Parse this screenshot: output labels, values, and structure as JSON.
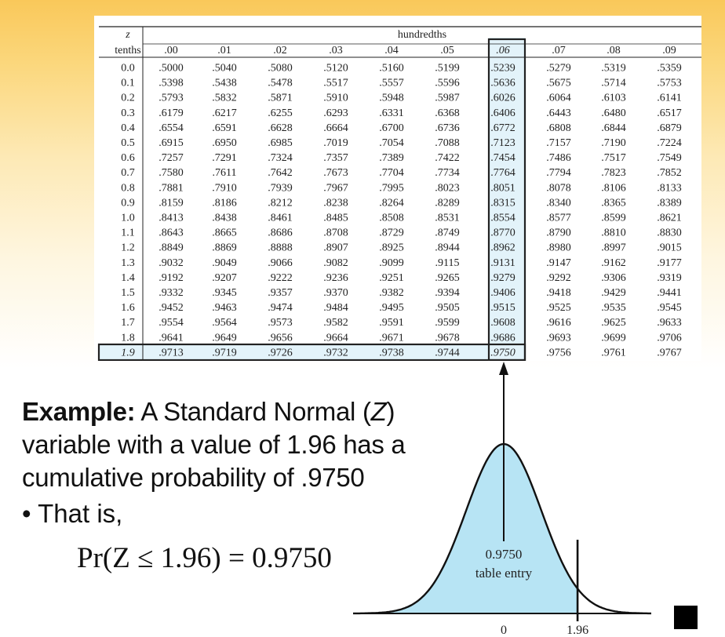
{
  "table": {
    "corner_top": "z",
    "corner_bottom": "tenths",
    "group_header": "hundredths",
    "columns": [
      ".00",
      ".01",
      ".02",
      ".03",
      ".04",
      ".05",
      ".06",
      ".07",
      ".08",
      ".09"
    ],
    "highlight_column_index": 6,
    "highlight_row_index": 19,
    "rows": [
      {
        "z": "0.0",
        "values": [
          ".5000",
          ".5040",
          ".5080",
          ".5120",
          ".5160",
          ".5199",
          ".5239",
          ".5279",
          ".5319",
          ".5359"
        ]
      },
      {
        "z": "0.1",
        "values": [
          ".5398",
          ".5438",
          ".5478",
          ".5517",
          ".5557",
          ".5596",
          ".5636",
          ".5675",
          ".5714",
          ".5753"
        ]
      },
      {
        "z": "0.2",
        "values": [
          ".5793",
          ".5832",
          ".5871",
          ".5910",
          ".5948",
          ".5987",
          ".6026",
          ".6064",
          ".6103",
          ".6141"
        ]
      },
      {
        "z": "0.3",
        "values": [
          ".6179",
          ".6217",
          ".6255",
          ".6293",
          ".6331",
          ".6368",
          ".6406",
          ".6443",
          ".6480",
          ".6517"
        ]
      },
      {
        "z": "0.4",
        "values": [
          ".6554",
          ".6591",
          ".6628",
          ".6664",
          ".6700",
          ".6736",
          ".6772",
          ".6808",
          ".6844",
          ".6879"
        ]
      },
      {
        "z": "0.5",
        "values": [
          ".6915",
          ".6950",
          ".6985",
          ".7019",
          ".7054",
          ".7088",
          ".7123",
          ".7157",
          ".7190",
          ".7224"
        ]
      },
      {
        "z": "0.6",
        "values": [
          ".7257",
          ".7291",
          ".7324",
          ".7357",
          ".7389",
          ".7422",
          ".7454",
          ".7486",
          ".7517",
          ".7549"
        ]
      },
      {
        "z": "0.7",
        "values": [
          ".7580",
          ".7611",
          ".7642",
          ".7673",
          ".7704",
          ".7734",
          ".7764",
          ".7794",
          ".7823",
          ".7852"
        ]
      },
      {
        "z": "0.8",
        "values": [
          ".7881",
          ".7910",
          ".7939",
          ".7967",
          ".7995",
          ".8023",
          ".8051",
          ".8078",
          ".8106",
          ".8133"
        ]
      },
      {
        "z": "0.9",
        "values": [
          ".8159",
          ".8186",
          ".8212",
          ".8238",
          ".8264",
          ".8289",
          ".8315",
          ".8340",
          ".8365",
          ".8389"
        ]
      },
      {
        "z": "1.0",
        "values": [
          ".8413",
          ".8438",
          ".8461",
          ".8485",
          ".8508",
          ".8531",
          ".8554",
          ".8577",
          ".8599",
          ".8621"
        ]
      },
      {
        "z": "1.1",
        "values": [
          ".8643",
          ".8665",
          ".8686",
          ".8708",
          ".8729",
          ".8749",
          ".8770",
          ".8790",
          ".8810",
          ".8830"
        ]
      },
      {
        "z": "1.2",
        "values": [
          ".8849",
          ".8869",
          ".8888",
          ".8907",
          ".8925",
          ".8944",
          ".8962",
          ".8980",
          ".8997",
          ".9015"
        ]
      },
      {
        "z": "1.3",
        "values": [
          ".9032",
          ".9049",
          ".9066",
          ".9082",
          ".9099",
          ".9115",
          ".9131",
          ".9147",
          ".9162",
          ".9177"
        ]
      },
      {
        "z": "1.4",
        "values": [
          ".9192",
          ".9207",
          ".9222",
          ".9236",
          ".9251",
          ".9265",
          ".9279",
          ".9292",
          ".9306",
          ".9319"
        ]
      },
      {
        "z": "1.5",
        "values": [
          ".9332",
          ".9345",
          ".9357",
          ".9370",
          ".9382",
          ".9394",
          ".9406",
          ".9418",
          ".9429",
          ".9441"
        ]
      },
      {
        "z": "1.6",
        "values": [
          ".9452",
          ".9463",
          ".9474",
          ".9484",
          ".9495",
          ".9505",
          ".9515",
          ".9525",
          ".9535",
          ".9545"
        ]
      },
      {
        "z": "1.7",
        "values": [
          ".9554",
          ".9564",
          ".9573",
          ".9582",
          ".9591",
          ".9599",
          ".9608",
          ".9616",
          ".9625",
          ".9633"
        ]
      },
      {
        "z": "1.8",
        "values": [
          ".9641",
          ".9649",
          ".9656",
          ".9664",
          ".9671",
          ".9678",
          ".9686",
          ".9693",
          ".9699",
          ".9706"
        ]
      },
      {
        "z": "1.9",
        "values": [
          ".9713",
          ".9719",
          ".9726",
          ".9732",
          ".9738",
          ".9744",
          ".9750",
          ".9756",
          ".9761",
          ".9767"
        ]
      }
    ]
  },
  "example": {
    "lead": "Example:",
    "text_pre": " A Standard Normal (",
    "variable": "Z",
    "text_post": ") variable with a value of 1.96 has a cumulative probability of .9750",
    "bullet": "• That is,",
    "formula": "Pr(Z ≤ 1.96) = 0.9750"
  },
  "curve": {
    "area_label_value": "0.9750",
    "area_label_text": "table entry",
    "axis_zero": "0",
    "axis_z": "1.96",
    "z_value": 1.96,
    "fill_color": "#b7e4f4",
    "highlight_color": "#e3f3fa"
  }
}
